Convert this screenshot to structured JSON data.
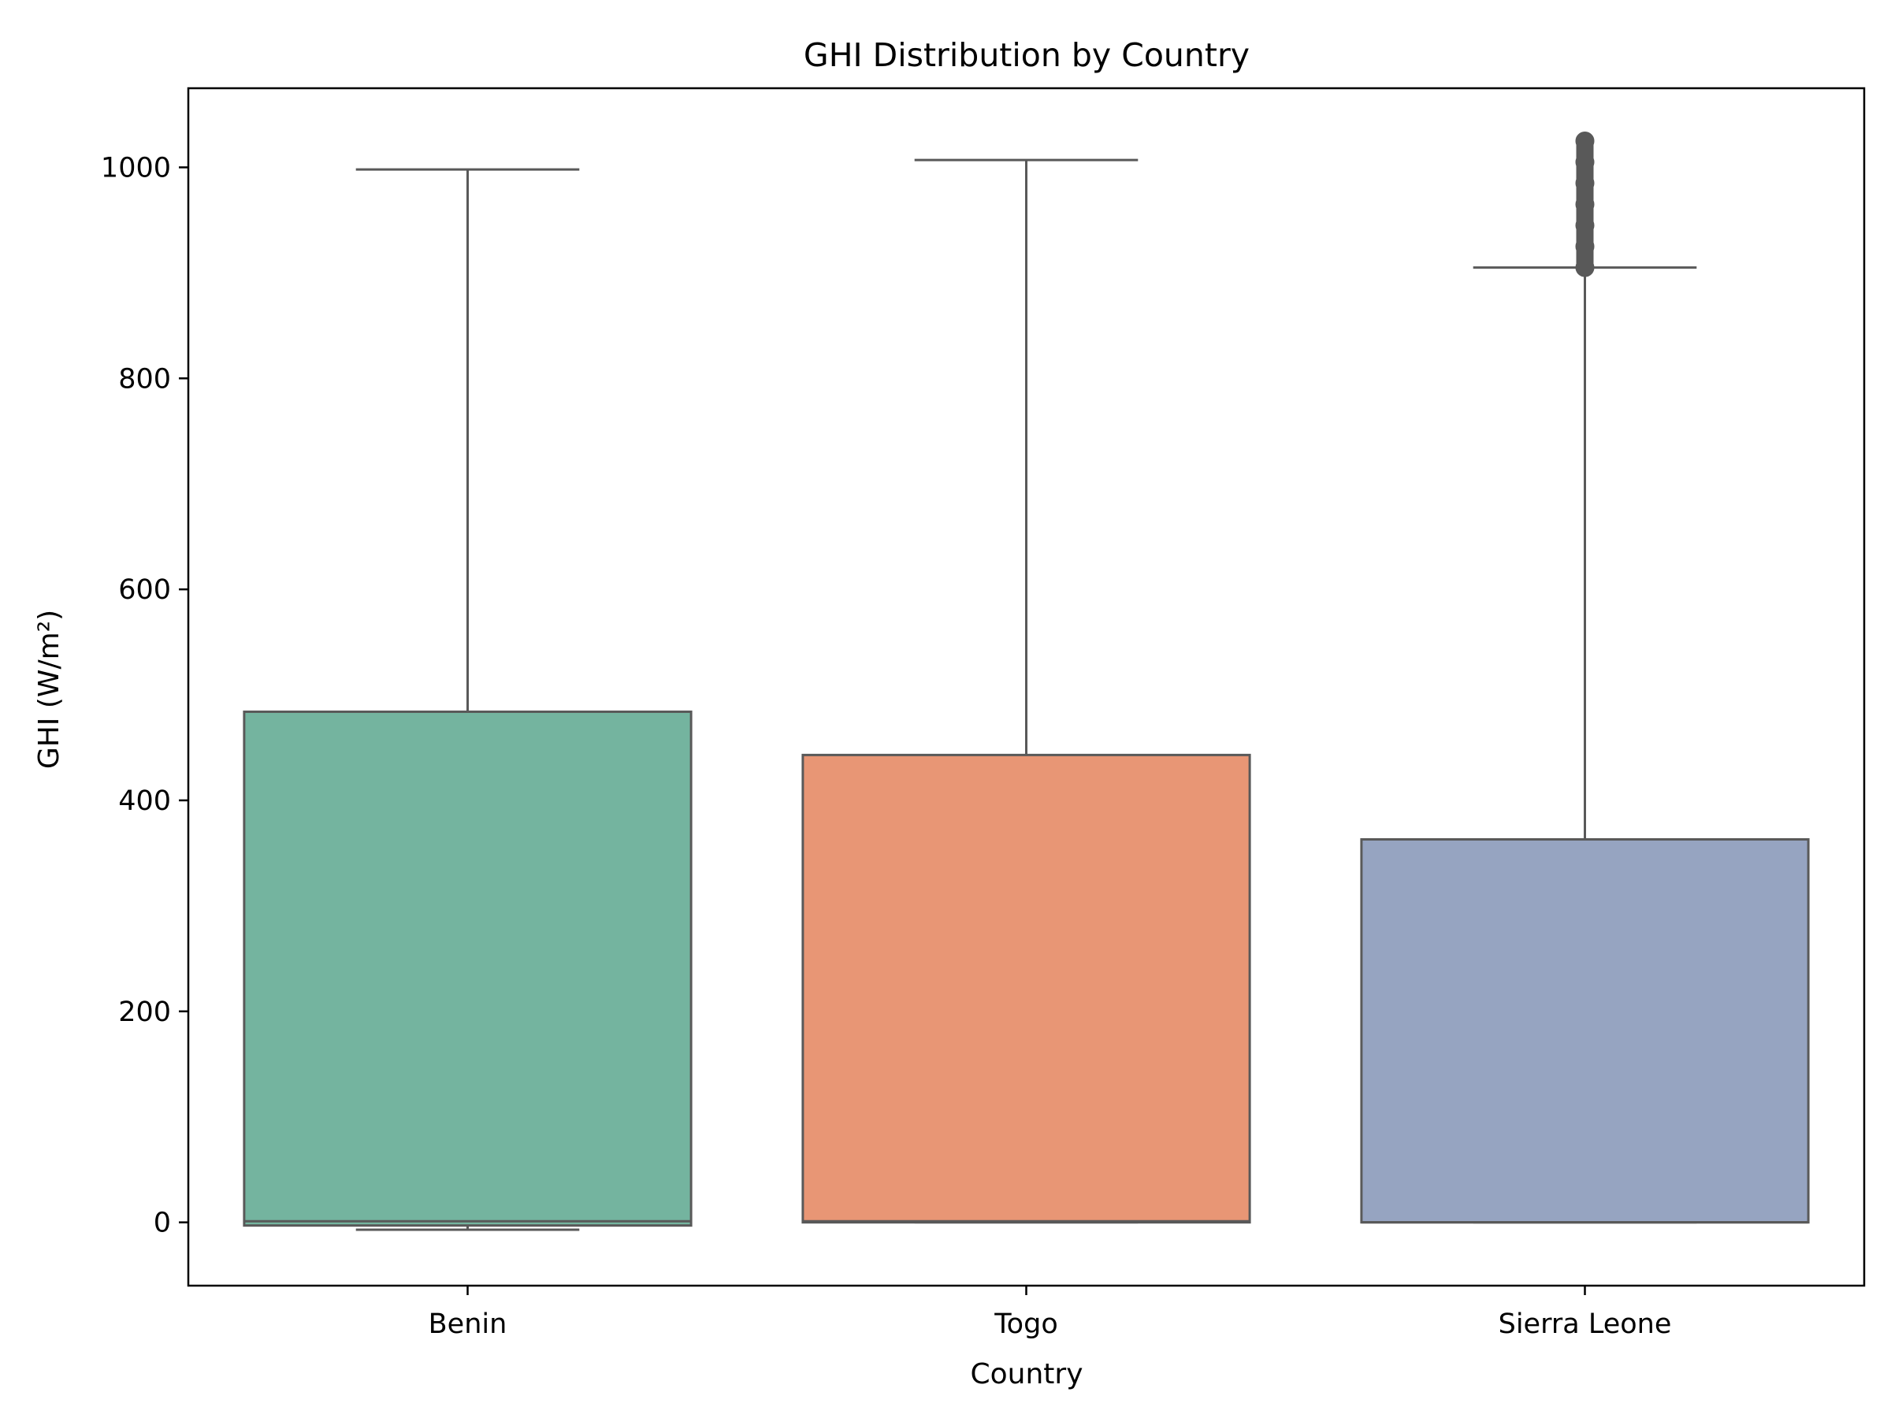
{
  "chart_data": {
    "type": "box",
    "title": "GHI Distribution by Country",
    "xlabel": "Country",
    "ylabel": "GHI (W/m²)",
    "ylim": [
      -60,
      1075
    ],
    "yticks": [
      0,
      200,
      400,
      600,
      800,
      1000
    ],
    "grid": false,
    "categories": [
      "Benin",
      "Togo",
      "Sierra Leone"
    ],
    "colors": [
      "#74b49f",
      "#e89675",
      "#96a4c1"
    ],
    "line_color": "#595959",
    "boxes": [
      {
        "category": "Benin",
        "whisker_low": -7,
        "q1": -3,
        "median": 1,
        "q3": 484,
        "whisker_high": 998,
        "outliers": []
      },
      {
        "category": "Togo",
        "whisker_low": 0,
        "q1": 0,
        "median": 1,
        "q3": 443,
        "whisker_high": 1007,
        "outliers": []
      },
      {
        "category": "Sierra Leone",
        "whisker_low": 0,
        "q1": 0,
        "median": 0,
        "q3": 363,
        "whisker_high": 905,
        "outliers": [
          905,
          925,
          945,
          965,
          985,
          1005,
          1025
        ]
      }
    ]
  }
}
